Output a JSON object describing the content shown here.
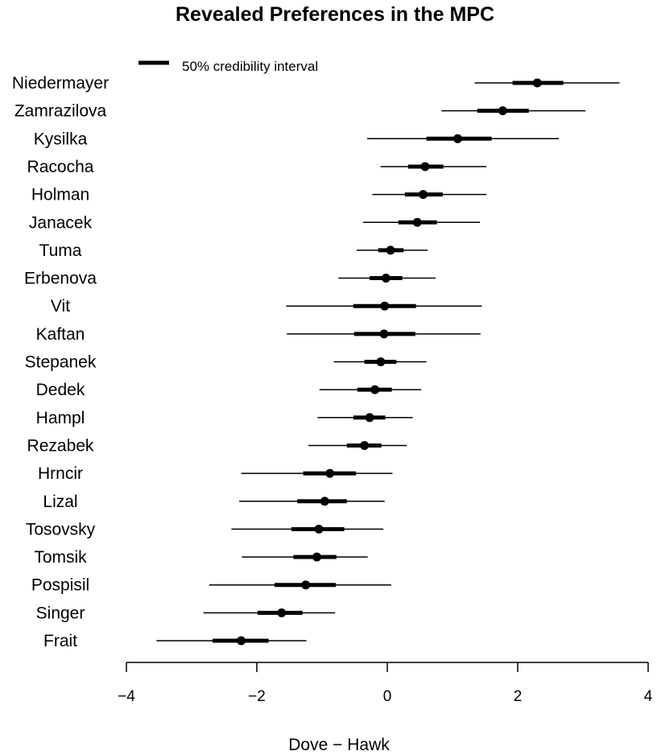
{
  "chart_data": {
    "type": "interval-dot",
    "title": "Revealed Preferences in the MPC",
    "xlabel": "Dove − Hawk",
    "ylabel": "",
    "xlim": [
      -4,
      4
    ],
    "x_ticks": [
      -4,
      -2,
      0,
      2,
      4
    ],
    "x_tick_labels": [
      "−4",
      "−2",
      "0",
      "2",
      "4"
    ],
    "grid": false,
    "legend": {
      "position": "top-left",
      "entry": "50% credibility interval"
    },
    "members": [
      {
        "name": "Niedermayer",
        "mean": 2.3,
        "ci50": [
          1.92,
          2.7
        ],
        "ci95": [
          1.34,
          3.56
        ]
      },
      {
        "name": "Zamrazilova",
        "mean": 1.77,
        "ci50": [
          1.38,
          2.17
        ],
        "ci95": [
          0.83,
          3.04
        ]
      },
      {
        "name": "Kysilka",
        "mean": 1.08,
        "ci50": [
          0.6,
          1.6
        ],
        "ci95": [
          -0.31,
          2.63
        ]
      },
      {
        "name": "Racocha",
        "mean": 0.58,
        "ci50": [
          0.32,
          0.86
        ],
        "ci95": [
          -0.1,
          1.52
        ]
      },
      {
        "name": "Holman",
        "mean": 0.55,
        "ci50": [
          0.27,
          0.85
        ],
        "ci95": [
          -0.23,
          1.52
        ]
      },
      {
        "name": "Janacek",
        "mean": 0.46,
        "ci50": [
          0.17,
          0.76
        ],
        "ci95": [
          -0.37,
          1.42
        ]
      },
      {
        "name": "Tuma",
        "mean": 0.05,
        "ci50": [
          -0.14,
          0.25
        ],
        "ci95": [
          -0.47,
          0.62
        ]
      },
      {
        "name": "Erbenova",
        "mean": -0.02,
        "ci50": [
          -0.27,
          0.23
        ],
        "ci95": [
          -0.75,
          0.74
        ]
      },
      {
        "name": "Vit",
        "mean": -0.04,
        "ci50": [
          -0.52,
          0.44
        ],
        "ci95": [
          -1.55,
          1.45
        ]
      },
      {
        "name": "Kaftan",
        "mean": -0.05,
        "ci50": [
          -0.51,
          0.43
        ],
        "ci95": [
          -1.54,
          1.43
        ]
      },
      {
        "name": "Stepanek",
        "mean": -0.1,
        "ci50": [
          -0.35,
          0.14
        ],
        "ci95": [
          -0.82,
          0.6
        ]
      },
      {
        "name": "Dedek",
        "mean": -0.19,
        "ci50": [
          -0.46,
          0.07
        ],
        "ci95": [
          -1.04,
          0.52
        ]
      },
      {
        "name": "Hampl",
        "mean": -0.27,
        "ci50": [
          -0.52,
          -0.03
        ],
        "ci95": [
          -1.07,
          0.39
        ]
      },
      {
        "name": "Rezabek",
        "mean": -0.35,
        "ci50": [
          -0.62,
          -0.09
        ],
        "ci95": [
          -1.21,
          0.3
        ]
      },
      {
        "name": "Hrncir",
        "mean": -0.88,
        "ci50": [
          -1.29,
          -0.48
        ],
        "ci95": [
          -2.24,
          0.08
        ]
      },
      {
        "name": "Lizal",
        "mean": -0.96,
        "ci50": [
          -1.38,
          -0.62
        ],
        "ci95": [
          -2.27,
          -0.04
        ]
      },
      {
        "name": "Tosovsky",
        "mean": -1.05,
        "ci50": [
          -1.47,
          -0.66
        ],
        "ci95": [
          -2.39,
          -0.06
        ]
      },
      {
        "name": "Tomsik",
        "mean": -1.08,
        "ci50": [
          -1.44,
          -0.78
        ],
        "ci95": [
          -2.23,
          -0.3
        ]
      },
      {
        "name": "Pospisil",
        "mean": -1.25,
        "ci50": [
          -1.73,
          -0.79
        ],
        "ci95": [
          -2.73,
          0.06
        ]
      },
      {
        "name": "Singer",
        "mean": -1.62,
        "ci50": [
          -1.99,
          -1.3
        ],
        "ci95": [
          -2.82,
          -0.8
        ]
      },
      {
        "name": "Frait",
        "mean": -2.24,
        "ci50": [
          -2.68,
          -1.82
        ],
        "ci95": [
          -3.54,
          -1.24
        ]
      }
    ]
  }
}
